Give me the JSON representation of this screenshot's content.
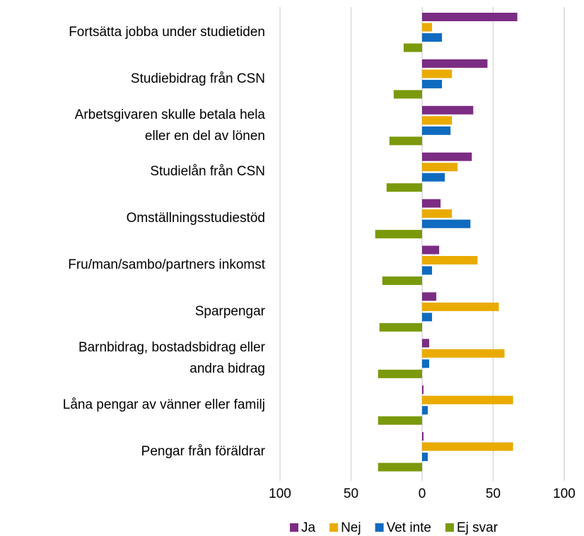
{
  "chart_data": {
    "type": "diverging-bar",
    "orientation": "horizontal",
    "categories": [
      "Fortsätta jobba under studietiden",
      "Studiebidrag från CSN",
      "Arbetsgivaren skulle betala hela\neller en del av lönen",
      "Studielån från CSN",
      "Omställningsstudiestöd",
      "Fru/man/sambo/partners inkomst",
      "Sparpengar",
      "Barnbidrag, bostadsbidrag eller\nandra bidrag",
      "Låna pengar av vänner eller familj",
      "Pengar från föräldrar"
    ],
    "series": [
      {
        "name": "Ja",
        "color": "#7b2c83",
        "values": [
          67,
          46,
          36,
          35,
          13,
          12,
          10,
          5,
          1,
          1
        ]
      },
      {
        "name": "Nej",
        "color": "#eaab00",
        "values": [
          7,
          21,
          21,
          25,
          21,
          39,
          54,
          58,
          64,
          64
        ]
      },
      {
        "name": "Vet inte",
        "color": "#0f6bbf",
        "values": [
          14,
          14,
          20,
          16,
          34,
          7,
          7,
          5,
          4,
          4
        ]
      },
      {
        "name": "Ej svar",
        "color": "#7a9a0c",
        "values": [
          -13,
          -20,
          -23,
          -25,
          -33,
          -28,
          -30,
          -31,
          -31,
          -31
        ]
      }
    ],
    "xlim": [
      -100,
      100
    ],
    "xticks": [
      {
        "value": -100,
        "label": "100"
      },
      {
        "value": -50,
        "label": "50"
      },
      0,
      50,
      100
    ],
    "grid": true,
    "legend": "bottom"
  }
}
